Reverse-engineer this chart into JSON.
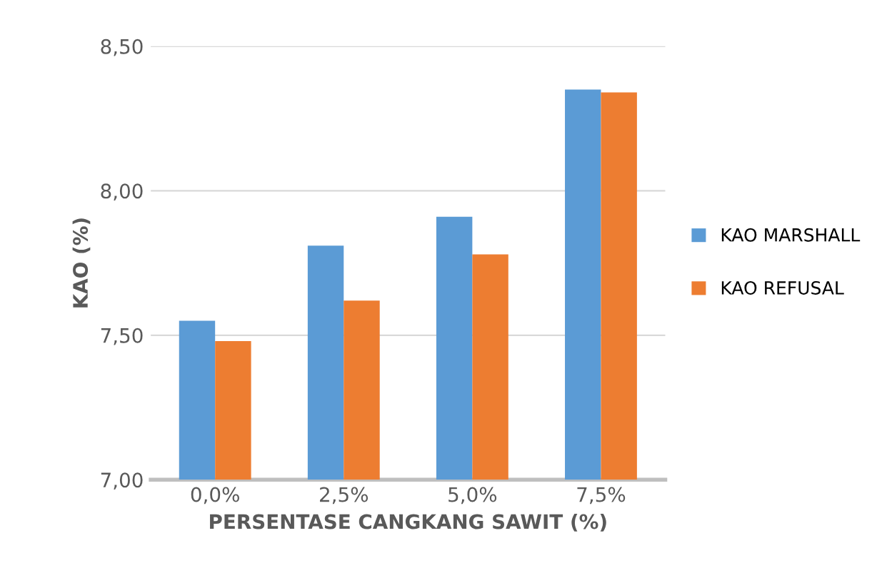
{
  "chart_data": {
    "type": "bar",
    "xlabel": "PERSENTASE CANGKANG SAWIT (%)",
    "ylabel": "KAO (%)",
    "categories": [
      "0,0%",
      "2,5%",
      "5,0%",
      "7,5%"
    ],
    "series": [
      {
        "name": "KAO MARSHALL",
        "color": "#5b9bd5",
        "values": [
          7.55,
          7.81,
          7.91,
          8.35
        ]
      },
      {
        "name": "KAO REFUSAL",
        "color": "#ed7d31",
        "values": [
          7.48,
          7.62,
          7.78,
          8.34
        ]
      }
    ],
    "ylim": [
      7.0,
      8.5
    ],
    "yticks": [
      {
        "value": 7.0,
        "label": "7,00"
      },
      {
        "value": 7.5,
        "label": "7,50"
      },
      {
        "value": 8.0,
        "label": "8,00"
      },
      {
        "value": 8.5,
        "label": "8,50"
      }
    ],
    "grid": "y",
    "legend": "right"
  }
}
